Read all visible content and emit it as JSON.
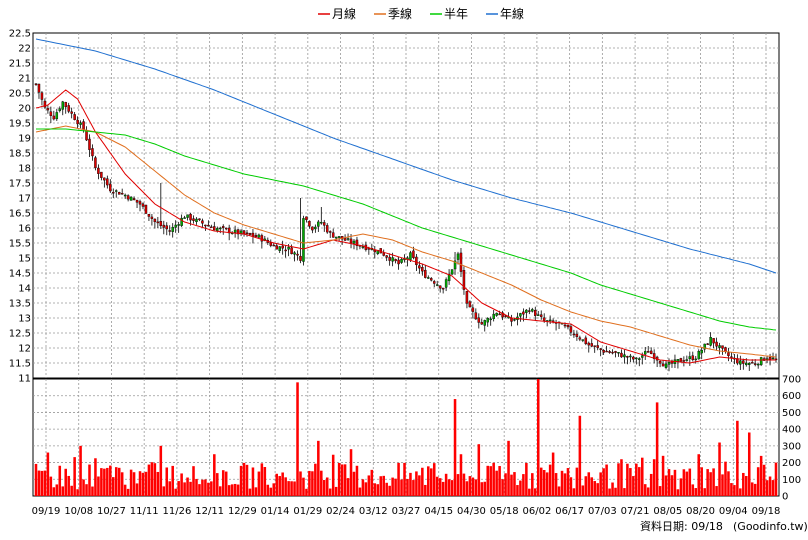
{
  "legend": [
    {
      "label": "月線",
      "color": "#e00000"
    },
    {
      "label": "季線",
      "color": "#e07020"
    },
    {
      "label": "半年",
      "color": "#00cc00"
    },
    {
      "label": "年線",
      "color": "#2070d0"
    }
  ],
  "footer": {
    "date_label": "資料日期: 09/18",
    "source": "(Goodinfo.tw)"
  },
  "colors": {
    "up_candle": "#00aa00",
    "down_candle": "#dd0000",
    "volume": "#ff0000",
    "grid": "#999999"
  },
  "chart_data": [
    {
      "type": "candlestick",
      "name": "price",
      "ylim": [
        11,
        22.5
      ],
      "y_ticks": [
        "11",
        "11.5",
        "12",
        "12.5",
        "13",
        "13.5",
        "14",
        "14.5",
        "15",
        "15.5",
        "16",
        "16.5",
        "17",
        "17.5",
        "18",
        "18.5",
        "19",
        "19.5",
        "20",
        "20.5",
        "21",
        "21.5",
        "22",
        "22.5"
      ],
      "x_ticks": [
        "09/19",
        "10/08",
        "10/27",
        "11/11",
        "11/26",
        "12/11",
        "12/29",
        "01/14",
        "01/29",
        "02/24",
        "03/12",
        "03/27",
        "04/15",
        "04/30",
        "05/18",
        "06/02",
        "06/17",
        "07/03",
        "07/21",
        "08/05",
        "08/20",
        "09/04",
        "09/18"
      ],
      "n_days": 250,
      "close_keypoints": [
        [
          0,
          20.8
        ],
        [
          3,
          20.0
        ],
        [
          6,
          19.7
        ],
        [
          9,
          20.2
        ],
        [
          12,
          19.8
        ],
        [
          16,
          19.3
        ],
        [
          20,
          18.0
        ],
        [
          25,
          17.3
        ],
        [
          30,
          17.1
        ],
        [
          35,
          16.8
        ],
        [
          40,
          16.2
        ],
        [
          45,
          15.9
        ],
        [
          50,
          16.4
        ],
        [
          55,
          16.2
        ],
        [
          60,
          16.0
        ],
        [
          65,
          15.9
        ],
        [
          70,
          15.8
        ],
        [
          75,
          15.7
        ],
        [
          80,
          15.4
        ],
        [
          85,
          15.3
        ],
        [
          89,
          15.0
        ],
        [
          90,
          16.4
        ],
        [
          93,
          16.0
        ],
        [
          96,
          16.2
        ],
        [
          99,
          15.8
        ],
        [
          104,
          15.6
        ],
        [
          110,
          15.4
        ],
        [
          116,
          15.2
        ],
        [
          122,
          14.8
        ],
        [
          126,
          15.1
        ],
        [
          130,
          14.5
        ],
        [
          137,
          14.0
        ],
        [
          142,
          15.1
        ],
        [
          145,
          13.4
        ],
        [
          150,
          12.8
        ],
        [
          155,
          13.2
        ],
        [
          160,
          12.9
        ],
        [
          166,
          13.3
        ],
        [
          171,
          12.9
        ],
        [
          176,
          12.8
        ],
        [
          181,
          12.5
        ],
        [
          186,
          12.1
        ],
        [
          191,
          11.9
        ],
        [
          196,
          11.8
        ],
        [
          202,
          11.6
        ],
        [
          206,
          11.9
        ],
        [
          212,
          11.4
        ],
        [
          217,
          11.6
        ],
        [
          222,
          11.7
        ],
        [
          227,
          12.3
        ],
        [
          232,
          11.8
        ],
        [
          237,
          11.5
        ],
        [
          242,
          11.5
        ],
        [
          246,
          11.7
        ],
        [
          249,
          11.6
        ]
      ],
      "spikes": [
        {
          "day": 42,
          "high": 17.5
        },
        {
          "day": 89,
          "high": 17.0
        },
        {
          "day": 96,
          "high": 16.7
        },
        {
          "day": 141,
          "high": 15.2
        }
      ],
      "ma_lines": [
        {
          "name": "月線",
          "keypoints": [
            [
              0,
              20.0
            ],
            [
              4,
              20.1
            ],
            [
              10,
              20.6
            ],
            [
              14,
              20.3
            ],
            [
              20,
              19.2
            ],
            [
              30,
              17.8
            ],
            [
              40,
              16.8
            ],
            [
              50,
              16.2
            ],
            [
              60,
              15.9
            ],
            [
              70,
              15.8
            ],
            [
              80,
              15.5
            ],
            [
              90,
              15.3
            ],
            [
              100,
              15.6
            ],
            [
              110,
              15.4
            ],
            [
              120,
              15.1
            ],
            [
              130,
              14.8
            ],
            [
              140,
              14.4
            ],
            [
              150,
              13.5
            ],
            [
              160,
              13.0
            ],
            [
              170,
              12.9
            ],
            [
              180,
              12.8
            ],
            [
              190,
              12.2
            ],
            [
              200,
              11.9
            ],
            [
              210,
              11.6
            ],
            [
              220,
              11.5
            ],
            [
              230,
              11.7
            ],
            [
              240,
              11.6
            ],
            [
              249,
              11.6
            ]
          ]
        },
        {
          "name": "季線",
          "keypoints": [
            [
              0,
              19.2
            ],
            [
              10,
              19.4
            ],
            [
              20,
              19.2
            ],
            [
              30,
              18.7
            ],
            [
              40,
              17.9
            ],
            [
              50,
              17.1
            ],
            [
              60,
              16.5
            ],
            [
              70,
              16.1
            ],
            [
              80,
              15.8
            ],
            [
              90,
              15.5
            ],
            [
              100,
              15.6
            ],
            [
              110,
              15.8
            ],
            [
              120,
              15.6
            ],
            [
              130,
              15.2
            ],
            [
              140,
              14.9
            ],
            [
              150,
              14.5
            ],
            [
              160,
              14.1
            ],
            [
              170,
              13.6
            ],
            [
              180,
              13.2
            ],
            [
              190,
              12.9
            ],
            [
              200,
              12.7
            ],
            [
              210,
              12.4
            ],
            [
              220,
              12.1
            ],
            [
              230,
              11.9
            ],
            [
              240,
              11.8
            ],
            [
              249,
              11.7
            ]
          ]
        },
        {
          "name": "半年",
          "keypoints": [
            [
              0,
              19.3
            ],
            [
              10,
              19.3
            ],
            [
              20,
              19.2
            ],
            [
              30,
              19.1
            ],
            [
              40,
              18.8
            ],
            [
              50,
              18.4
            ],
            [
              60,
              18.1
            ],
            [
              70,
              17.8
            ],
            [
              80,
              17.6
            ],
            [
              90,
              17.4
            ],
            [
              100,
              17.1
            ],
            [
              110,
              16.8
            ],
            [
              120,
              16.4
            ],
            [
              130,
              16.0
            ],
            [
              140,
              15.7
            ],
            [
              150,
              15.4
            ],
            [
              160,
              15.1
            ],
            [
              170,
              14.8
            ],
            [
              180,
              14.5
            ],
            [
              190,
              14.1
            ],
            [
              200,
              13.8
            ],
            [
              210,
              13.5
            ],
            [
              220,
              13.2
            ],
            [
              230,
              12.9
            ],
            [
              240,
              12.7
            ],
            [
              249,
              12.6
            ]
          ]
        },
        {
          "name": "年線",
          "keypoints": [
            [
              0,
              22.3
            ],
            [
              20,
              21.9
            ],
            [
              40,
              21.3
            ],
            [
              60,
              20.6
            ],
            [
              80,
              19.8
            ],
            [
              100,
              19.0
            ],
            [
              120,
              18.3
            ],
            [
              140,
              17.6
            ],
            [
              160,
              17.0
            ],
            [
              180,
              16.5
            ],
            [
              200,
              15.9
            ],
            [
              220,
              15.3
            ],
            [
              240,
              14.8
            ],
            [
              249,
              14.5
            ]
          ]
        }
      ]
    },
    {
      "type": "bar",
      "name": "volume",
      "ylim": [
        0,
        700
      ],
      "y_ticks": [
        "0",
        "100",
        "200",
        "300",
        "400",
        "500",
        "600",
        "700"
      ],
      "n_days": 250,
      "peaks": [
        {
          "day": 2,
          "value": 150
        },
        {
          "day": 4,
          "value": 260
        },
        {
          "day": 15,
          "value": 300
        },
        {
          "day": 42,
          "value": 300
        },
        {
          "day": 60,
          "value": 250
        },
        {
          "day": 88,
          "value": 680
        },
        {
          "day": 95,
          "value": 330
        },
        {
          "day": 106,
          "value": 280
        },
        {
          "day": 141,
          "value": 580
        },
        {
          "day": 149,
          "value": 310
        },
        {
          "day": 159,
          "value": 330
        },
        {
          "day": 169,
          "value": 700
        },
        {
          "day": 174,
          "value": 260
        },
        {
          "day": 183,
          "value": 480
        },
        {
          "day": 197,
          "value": 220
        },
        {
          "day": 209,
          "value": 560
        },
        {
          "day": 218,
          "value": 160
        },
        {
          "day": 223,
          "value": 250
        },
        {
          "day": 230,
          "value": 320
        },
        {
          "day": 236,
          "value": 450
        },
        {
          "day": 240,
          "value": 380
        },
        {
          "day": 244,
          "value": 240
        },
        {
          "day": 249,
          "value": 200
        }
      ]
    }
  ]
}
